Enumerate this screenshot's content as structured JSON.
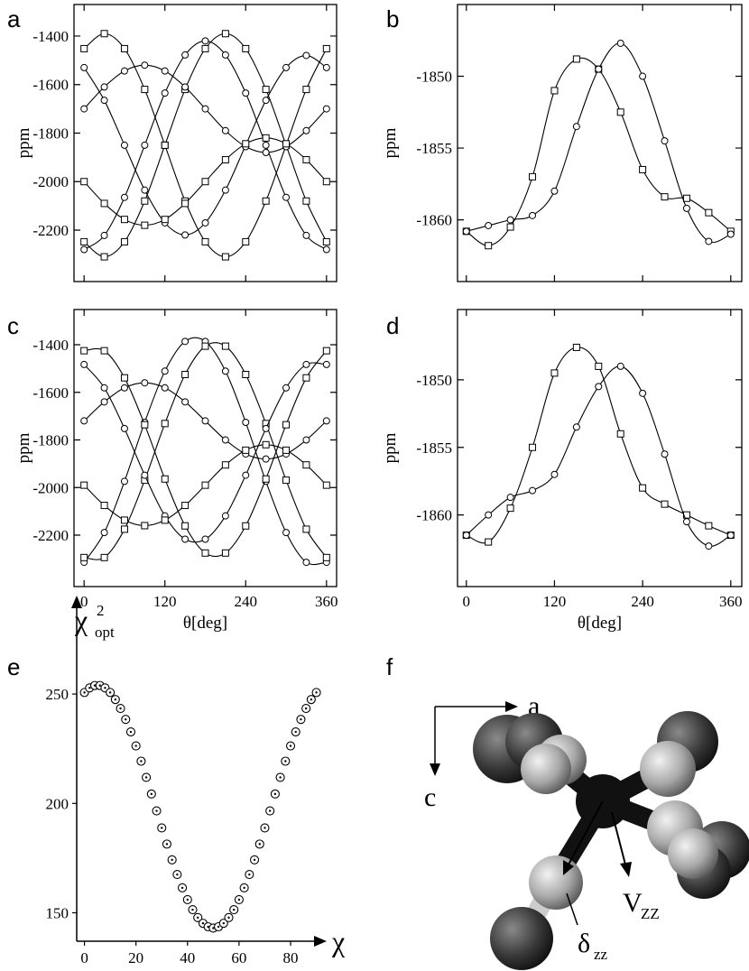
{
  "chart_data": [
    {
      "type": "line",
      "label": "a",
      "ylabel": "ppm",
      "xlim": [
        -15,
        375
      ],
      "ylim": [
        -2412,
        -1270
      ],
      "xticks": [
        0,
        120,
        240,
        360
      ],
      "xticklabels": false,
      "yticks": [
        -1400,
        -1600,
        -1800,
        -2000,
        -2200
      ],
      "color": "#000000",
      "x": [
        0,
        30,
        60,
        90,
        120,
        150,
        180,
        210,
        240,
        270,
        300,
        330,
        360
      ],
      "series": [
        {
          "marker": "circle",
          "values": [
            -2280,
            -2222,
            -2065,
            -1850,
            -1635,
            -1478,
            -1420,
            -1478,
            -1635,
            -1850,
            -2065,
            -2222,
            -2280
          ]
        },
        {
          "marker": "square",
          "values": [
            -2248,
            -2310,
            -2248,
            -2080,
            -1850,
            -1620,
            -1452,
            -1390,
            -1452,
            -1620,
            -1850,
            -2080,
            -2248
          ]
        },
        {
          "marker": "circle",
          "values": [
            -1530,
            -1665,
            -1850,
            -2035,
            -2170,
            -2220,
            -2170,
            -2035,
            -1850,
            -1665,
            -1530,
            -1480,
            -1530
          ]
        },
        {
          "marker": "square",
          "values": [
            -1452,
            -1390,
            -1452,
            -1620,
            -1850,
            -2080,
            -2248,
            -2310,
            -2248,
            -2080,
            -1850,
            -1620,
            -1452
          ]
        },
        {
          "marker": "circle",
          "values": [
            -1700,
            -1610,
            -1544,
            -1520,
            -1544,
            -1610,
            -1700,
            -1790,
            -1856,
            -1880,
            -1856,
            -1790,
            -1700
          ]
        },
        {
          "marker": "square",
          "values": [
            -2000,
            -2090,
            -2156,
            -2180,
            -2156,
            -2090,
            -2000,
            -1910,
            -1844,
            -1820,
            -1844,
            -1910,
            -2000
          ]
        }
      ]
    },
    {
      "type": "line",
      "label": "b",
      "ylabel": "ppm",
      "xlim": [
        -12,
        375
      ],
      "ylim": [
        -1864.3,
        -1845
      ],
      "xticks": [
        0,
        120,
        240,
        360
      ],
      "xticklabels": false,
      "yticks": [
        -1850,
        -1855,
        -1860
      ],
      "color": "#000000",
      "x": [
        0,
        30,
        60,
        90,
        120,
        150,
        180,
        210,
        240,
        270,
        300,
        330,
        360
      ],
      "series": [
        {
          "marker": "square",
          "values": [
            -1860.8,
            -1861.8,
            -1860.5,
            -1857,
            -1851,
            -1848.8,
            -1849.5,
            -1852.5,
            -1856.5,
            -1858.4,
            -1858.5,
            -1859.5,
            -1860.8
          ]
        },
        {
          "marker": "circle",
          "values": [
            -1860.8,
            -1860.4,
            -1860,
            -1859.7,
            -1858,
            -1853.5,
            -1849.5,
            -1847.7,
            -1850,
            -1854.5,
            -1859.2,
            -1861.5,
            -1861
          ]
        }
      ]
    },
    {
      "type": "line",
      "label": "c",
      "ylabel": "ppm",
      "xlabel": "θ[deg]",
      "xlim": [
        -15,
        375
      ],
      "ylim": [
        -2416,
        -1252
      ],
      "xticks": [
        0,
        120,
        240,
        360
      ],
      "xticklabels": true,
      "yticks": [
        -1400,
        -1600,
        -1800,
        -2000,
        -2200
      ],
      "color": "#000000",
      "x": [
        0,
        30,
        60,
        90,
        120,
        150,
        180,
        210,
        240,
        270,
        300,
        330,
        360
      ],
      "series": [
        {
          "marker": "circle",
          "values": [
            -2314,
            -2189,
            -1974,
            -1726,
            -1511,
            -1386,
            -1386,
            -1511,
            -1726,
            -1974,
            -2189,
            -2314,
            -2314
          ]
        },
        {
          "marker": "square",
          "values": [
            -2294,
            -2294,
            -2175,
            -1969,
            -1731,
            -1525,
            -1406,
            -1406,
            -1525,
            -1731,
            -1969,
            -2175,
            -2294
          ]
        },
        {
          "marker": "circle",
          "values": [
            -1483,
            -1581,
            -1752,
            -1948,
            -2119,
            -2217,
            -2217,
            -2119,
            -1948,
            -1752,
            -1581,
            -1483,
            -1483
          ]
        },
        {
          "marker": "square",
          "values": [
            -1425,
            -1425,
            -1539,
            -1736,
            -1964,
            -2161,
            -2275,
            -2275,
            -2161,
            -1964,
            -1736,
            -1539,
            -1425
          ]
        },
        {
          "marker": "circle",
          "values": [
            -1720,
            -1640,
            -1581,
            -1560,
            -1581,
            -1640,
            -1720,
            -1800,
            -1859,
            -1880,
            -1859,
            -1800,
            -1720
          ]
        },
        {
          "marker": "square",
          "values": [
            -1990,
            -2075,
            -2137,
            -2160,
            -2137,
            -2075,
            -1990,
            -1905,
            -1843,
            -1820,
            -1843,
            -1905,
            -1990
          ]
        }
      ]
    },
    {
      "type": "line",
      "label": "d",
      "ylabel": "ppm",
      "xlabel": "θ[deg]",
      "xlim": [
        -12,
        375
      ],
      "ylim": [
        -1865.3,
        -1844.8
      ],
      "xticks": [
        0,
        120,
        240,
        360
      ],
      "xticklabels": true,
      "yticks": [
        -1850,
        -1855,
        -1860
      ],
      "color": "#000000",
      "x": [
        0,
        30,
        60,
        90,
        120,
        150,
        180,
        210,
        240,
        270,
        300,
        330,
        360
      ],
      "series": [
        {
          "marker": "square",
          "values": [
            -1861.5,
            -1862,
            -1859.5,
            -1855,
            -1849.5,
            -1847.6,
            -1849,
            -1854,
            -1858,
            -1859.2,
            -1860,
            -1860.8,
            -1861.5
          ]
        },
        {
          "marker": "circle",
          "values": [
            -1861.5,
            -1860,
            -1858.7,
            -1858.2,
            -1857,
            -1853.5,
            -1850.5,
            -1849,
            -1851,
            -1855.5,
            -1860.5,
            -1862.3,
            -1861.5
          ]
        }
      ]
    },
    {
      "type": "scatter",
      "label": "e",
      "ylabel": {
        "symbol": "χ",
        "superscript": "2",
        "subscript": "opt"
      },
      "xlabel": "χ",
      "xlim": [
        -3,
        94
      ],
      "ylim": [
        137,
        295
      ],
      "xticks": [
        0,
        20,
        40,
        60,
        80
      ],
      "yticks": [
        150,
        200,
        250
      ],
      "color": "#000000",
      "x": [
        0,
        2,
        4,
        6,
        8,
        10,
        12,
        14,
        16,
        18,
        20,
        22,
        24,
        26,
        28,
        30,
        32,
        34,
        36,
        38,
        40,
        42,
        44,
        46,
        48,
        50,
        52,
        54,
        56,
        58,
        60,
        62,
        64,
        66,
        68,
        70,
        72,
        74,
        76,
        78,
        80,
        82,
        84,
        86,
        88,
        90
      ],
      "values": [
        250.7,
        252.8,
        253.9,
        253.9,
        252.8,
        250.7,
        247.5,
        243.4,
        238.4,
        232.7,
        226.3,
        219.3,
        211.9,
        204.3,
        196.6,
        188.8,
        181.4,
        174.2,
        167.5,
        161.4,
        156.0,
        151.4,
        147.8,
        145.2,
        143.6,
        143.0,
        143.6,
        145.2,
        147.8,
        151.4,
        156.0,
        161.4,
        167.5,
        174.2,
        181.4,
        188.8,
        196.6,
        204.3,
        211.9,
        219.3,
        226.3,
        232.7,
        238.4,
        243.4,
        247.5,
        250.7
      ]
    }
  ],
  "diagram": {
    "label": "f",
    "axis_x": "a",
    "axis_y": "c",
    "vector": {
      "symbol": "V",
      "subscript": "ZZ"
    },
    "tensor": {
      "symbol": "δ",
      "subscript": "zz"
    }
  }
}
